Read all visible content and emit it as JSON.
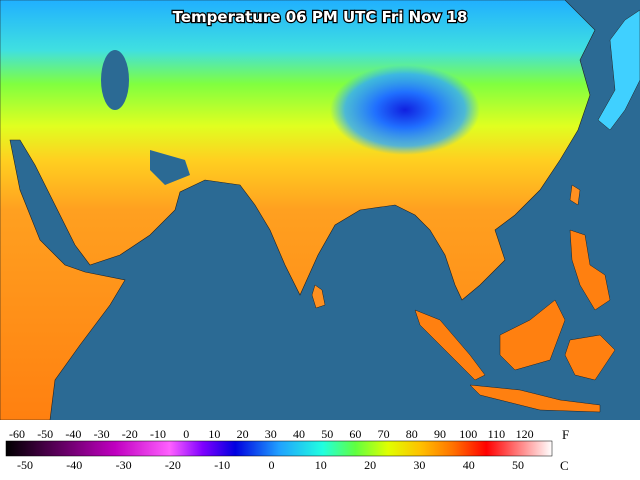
{
  "title": "Temperature 06 PM UTC Fri Nov 18",
  "legend": {
    "fahrenheit_labels": [
      "-60",
      "-50",
      "-40",
      "-30",
      "-20",
      "-10",
      "0",
      "10",
      "20",
      "30",
      "40",
      "50",
      "60",
      "70",
      "80",
      "90",
      "100",
      "110",
      "120"
    ],
    "fahrenheit_unit": "F",
    "celsius_labels": [
      "-50",
      "-40",
      "-30",
      "-20",
      "-10",
      "0",
      "10",
      "20",
      "30",
      "40",
      "50"
    ],
    "celsius_unit": "C"
  }
}
